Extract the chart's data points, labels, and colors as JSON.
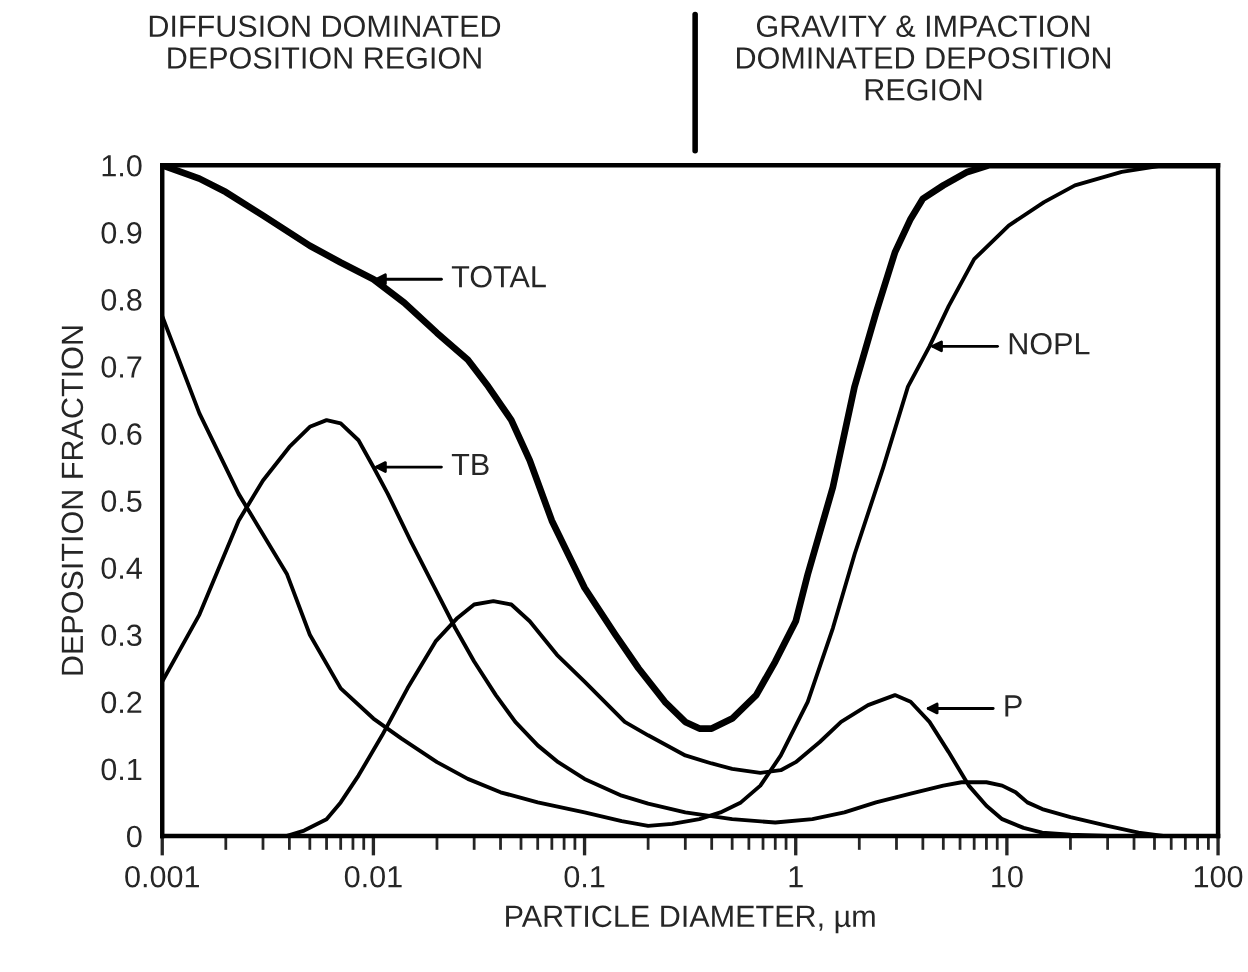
{
  "chart_data": {
    "type": "line",
    "xlabel": "PARTICLE DIAMETER, µm",
    "ylabel": "DEPOSITION FRACTION",
    "log": "x",
    "grid": false,
    "legend": false,
    "marker": "none",
    "line_style": "solid",
    "xlim": [
      0.001,
      100
    ],
    "xticks": [
      0.001,
      0.01,
      0.1,
      1,
      10,
      100
    ],
    "ylim": [
      0,
      1
    ],
    "yticks": [
      0,
      0.1,
      0.2,
      0.3,
      0.4,
      0.5,
      0.6,
      0.7,
      0.8,
      0.9,
      {
        "value": 1,
        "label": "1.0"
      }
    ],
    "series": [
      {
        "color": "#000000",
        "x": [
          0.001,
          0.0015,
          0.002,
          0.003,
          0.005,
          0.007,
          0.01,
          0.014,
          0.02,
          0.028,
          0.035,
          0.045,
          0.055,
          0.07,
          0.1,
          0.14,
          0.18,
          0.24,
          0.3,
          0.35,
          0.4,
          0.5,
          0.65,
          0.8,
          1.0,
          1.14,
          1.5,
          1.9,
          2.4,
          2.95,
          3.5,
          4,
          5,
          6.5,
          8.2,
          100
        ],
        "values": [
          1.0,
          0.98,
          0.96,
          0.925,
          0.88,
          0.855,
          0.83,
          0.795,
          0.75,
          0.71,
          0.67,
          0.62,
          0.56,
          0.47,
          0.37,
          0.3,
          0.25,
          0.2,
          0.17,
          0.16,
          0.16,
          0.175,
          0.21,
          0.26,
          0.32,
          0.39,
          0.52,
          0.67,
          0.78,
          0.87,
          0.92,
          0.95,
          0.97,
          0.99,
          1.0,
          1.0
        ]
      },
      {
        "color": "#000000",
        "x": [
          0.001,
          0.0015,
          0.0023,
          0.003,
          0.004,
          0.005,
          0.006,
          0.007,
          0.0085,
          0.01,
          0.0117,
          0.015,
          0.0195,
          0.0244,
          0.03,
          0.038,
          0.047,
          0.06,
          0.075,
          0.1,
          0.15,
          0.2,
          0.3,
          0.5,
          0.8,
          1.2,
          1.7,
          2.4,
          3.5,
          5,
          6.1,
          8,
          9.5,
          11,
          12.5,
          14.7,
          20,
          30,
          42,
          55
        ],
        "values": [
          0.23,
          0.33,
          0.47,
          0.53,
          0.58,
          0.61,
          0.62,
          0.615,
          0.59,
          0.55,
          0.51,
          0.44,
          0.37,
          0.31,
          0.26,
          0.21,
          0.17,
          0.135,
          0.11,
          0.085,
          0.06,
          0.048,
          0.035,
          0.025,
          0.02,
          0.025,
          0.035,
          0.05,
          0.063,
          0.075,
          0.08,
          0.08,
          0.075,
          0.065,
          0.05,
          0.04,
          0.028,
          0.015,
          0.005,
          0
        ]
      },
      {
        "color": "#000000",
        "x": [
          0.0039,
          0.0047,
          0.006,
          0.007,
          0.0085,
          0.011,
          0.0145,
          0.0197,
          0.025,
          0.03,
          0.037,
          0.045,
          0.055,
          0.074,
          0.1,
          0.155,
          0.2,
          0.3,
          0.4,
          0.5,
          0.68,
          0.85,
          1.0,
          1.3,
          1.64,
          2.2,
          2.95,
          3.5,
          4.3,
          5.3,
          6.6,
          8,
          9.5,
          12,
          14.7,
          20,
          30
        ],
        "values": [
          0,
          0.008,
          0.025,
          0.05,
          0.09,
          0.15,
          0.22,
          0.29,
          0.325,
          0.345,
          0.35,
          0.345,
          0.32,
          0.27,
          0.23,
          0.17,
          0.15,
          0.12,
          0.108,
          0.1,
          0.094,
          0.098,
          0.11,
          0.14,
          0.17,
          0.195,
          0.21,
          0.2,
          0.17,
          0.125,
          0.075,
          0.045,
          0.025,
          0.012,
          0.005,
          0.002,
          0
        ]
      },
      {
        "color": "#000000",
        "x": [
          0.001,
          0.0015,
          0.0023,
          0.0039,
          0.005,
          0.007,
          0.01,
          0.0136,
          0.02,
          0.028,
          0.04,
          0.06,
          0.1,
          0.15,
          0.2,
          0.26,
          0.35,
          0.44,
          0.55,
          0.68,
          0.85,
          1.14,
          1.5,
          1.9,
          2.6,
          3.4,
          4.3,
          5.3,
          7,
          10.2,
          15,
          21,
          35,
          55,
          100
        ],
        "values": [
          0.775,
          0.63,
          0.51,
          0.39,
          0.3,
          0.22,
          0.175,
          0.145,
          0.11,
          0.085,
          0.065,
          0.05,
          0.035,
          0.022,
          0.015,
          0.018,
          0.025,
          0.035,
          0.05,
          0.075,
          0.12,
          0.2,
          0.31,
          0.42,
          0.55,
          0.67,
          0.73,
          0.79,
          0.86,
          0.91,
          0.945,
          0.97,
          0.99,
          1.0,
          1.0
        ]
      }
    ],
    "annotations": [
      "DIFFUSION DOMINATED\nDEPOSITION REGION",
      "GRAVITY & IMPACTION\nDOMINATED DEPOSITION\nREGION",
      {
        "text": "TOTAL",
        "x": 0.01,
        "y": 0.83
      },
      {
        "text": "TB",
        "x": 0.01,
        "y": 0.55
      },
      {
        "text": "NOPL",
        "x": 4.3,
        "y": 0.73
      },
      {
        "text": "P",
        "x": 4.1,
        "y": 0.19
      }
    ]
  }
}
